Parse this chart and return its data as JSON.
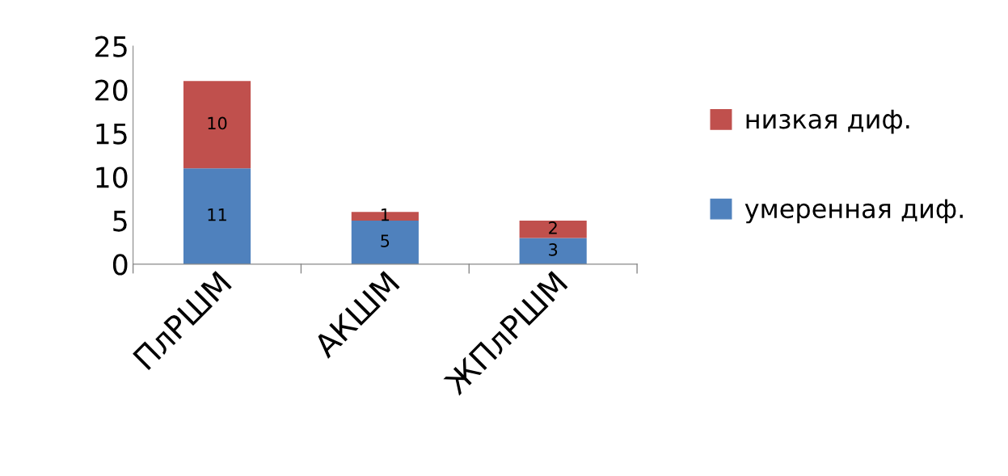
{
  "chart_data": {
    "type": "bar",
    "stacked": true,
    "categories": [
      "ПлРШМ",
      "АКШМ",
      "ЖПлРШМ"
    ],
    "series": [
      {
        "name": "умеренная диф.",
        "color": "#4f81bd",
        "values": [
          11,
          5,
          3
        ]
      },
      {
        "name": "низкая диф.",
        "color": "#c0504d",
        "values": [
          10,
          1,
          2
        ]
      }
    ],
    "ylim": [
      0,
      25
    ],
    "yticks": [
      0,
      5,
      10,
      15,
      20,
      25
    ],
    "grid": false,
    "legend": "right",
    "data_labels": true
  }
}
